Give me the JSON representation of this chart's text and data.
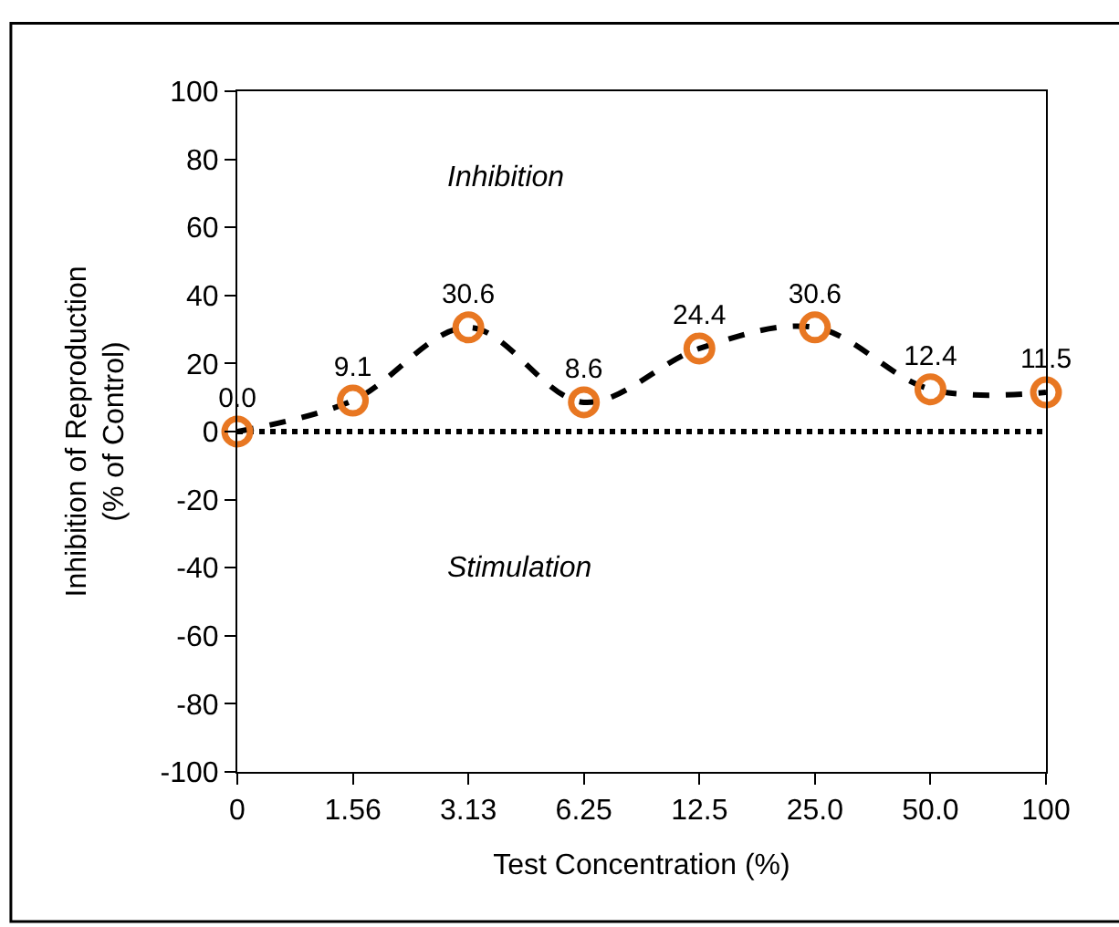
{
  "chart_data": {
    "type": "line",
    "xlabel": "Test Concentration (%)",
    "ylabel": "Inhibition of Reproduction\n(% of Control)",
    "categories": [
      "0",
      "1.56",
      "3.13",
      "6.25",
      "12.5",
      "25.0",
      "50.0",
      "100"
    ],
    "series": [
      {
        "color": "#e87722",
        "values": [
          0.0,
          9.1,
          30.6,
          8.6,
          24.4,
          30.6,
          12.4,
          11.5
        ],
        "value_labels": [
          "0.0",
          "9.1",
          "30.6",
          "8.6",
          "24.4",
          "30.6",
          "12.4",
          "11.5"
        ]
      }
    ],
    "ylim": [
      -100,
      100
    ],
    "yticks": [
      -100,
      -80,
      -60,
      -40,
      -20,
      0,
      20,
      40,
      60,
      80,
      100
    ],
    "ref_lines": [
      {
        "axis": "y",
        "value": 0,
        "color": "#000000",
        "line_style": "dotted"
      }
    ],
    "annotations": [
      "Inhibition",
      "Stimulation"
    ],
    "marker": "circle",
    "line_style": "dashed",
    "grid": false
  }
}
